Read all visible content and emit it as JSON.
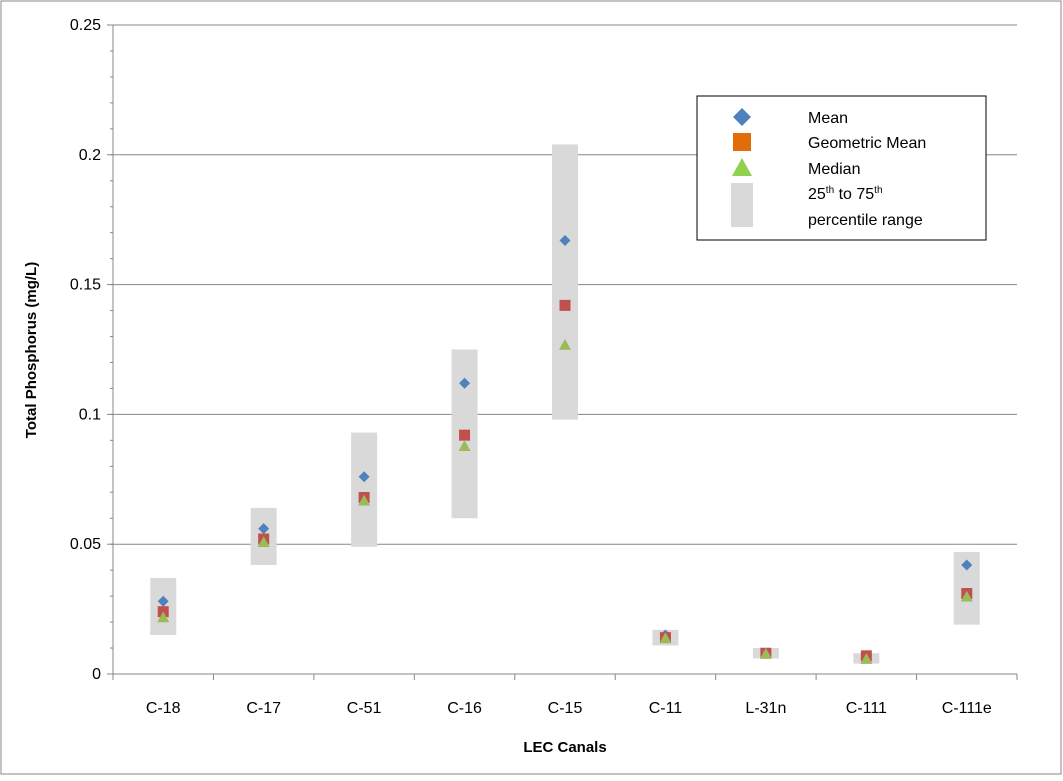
{
  "chart_data": {
    "type": "scatter",
    "title": "",
    "xlabel": "LEC Canals",
    "ylabel": "Total Phosphorus (mg/L)",
    "ylim": [
      0,
      0.25
    ],
    "y_ticks": [
      "0",
      "0.05",
      "0.1",
      "0.15",
      "0.2",
      "0.25"
    ],
    "grid": "horizontal",
    "legend_position": "top-right",
    "categories": [
      "C-18",
      "C-17",
      "C-51",
      "C-16",
      "C-15",
      "C-11",
      "L-31n",
      "C-111",
      "C-111e"
    ],
    "series": [
      {
        "name": "Mean",
        "marker": "diamond",
        "color": "#4F81BD",
        "values": [
          0.028,
          0.056,
          0.076,
          0.112,
          0.167,
          0.015,
          0.008,
          0.007,
          0.042
        ]
      },
      {
        "name": "Geometric Mean",
        "marker": "square",
        "color": "#C0504D",
        "values": [
          0.024,
          0.052,
          0.068,
          0.092,
          0.142,
          0.014,
          0.008,
          0.007,
          0.031
        ]
      },
      {
        "name": "Median",
        "marker": "triangle",
        "color": "#9BBB59",
        "values": [
          0.022,
          0.051,
          0.067,
          0.088,
          0.127,
          0.014,
          0.008,
          0.006,
          0.03
        ]
      }
    ],
    "range": {
      "color": "#D9D9D9",
      "legend_line1_main": "25",
      "legend_line1_sup1": "th",
      "legend_line1_mid": " to 75",
      "legend_line1_sup2": "th",
      "legend_line2": "percentile range",
      "low": [
        0.015,
        0.042,
        0.049,
        0.06,
        0.098,
        0.011,
        0.006,
        0.004,
        0.019
      ],
      "high": [
        0.037,
        0.064,
        0.093,
        0.125,
        0.204,
        0.017,
        0.01,
        0.008,
        0.047
      ]
    },
    "colors": {
      "grid": "#878787",
      "axis": "#878787",
      "frame": "#878787"
    }
  }
}
